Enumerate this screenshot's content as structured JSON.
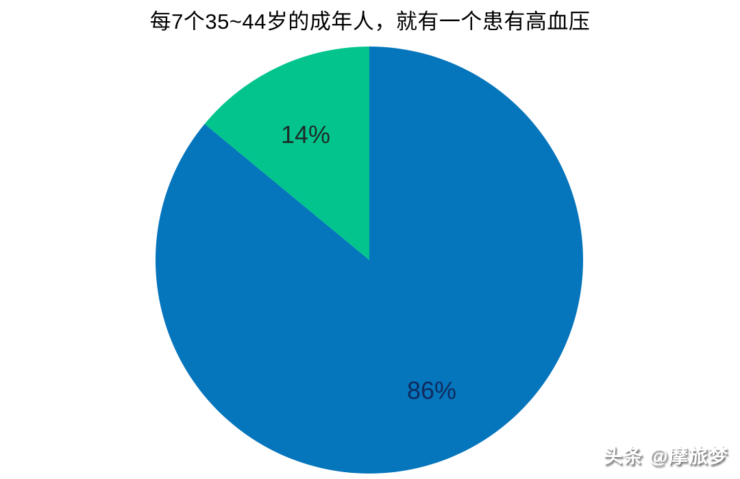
{
  "chart_data": {
    "type": "pie",
    "title": "每7个35~44岁的成年人，就有一个患有高血压",
    "start_angle_deg": 0,
    "clockwise": true,
    "legend": "none",
    "background": "#ffffff",
    "slices": [
      {
        "label": "86%",
        "value": 86,
        "color": "#0575bc",
        "label_color": "#0f2b5e"
      },
      {
        "label": "14%",
        "value": 14,
        "color": "#02c48c",
        "label_color": "#1e2b28"
      }
    ]
  },
  "watermark": {
    "text": "头条 @摩旅梦",
    "color": "#ffffff"
  }
}
